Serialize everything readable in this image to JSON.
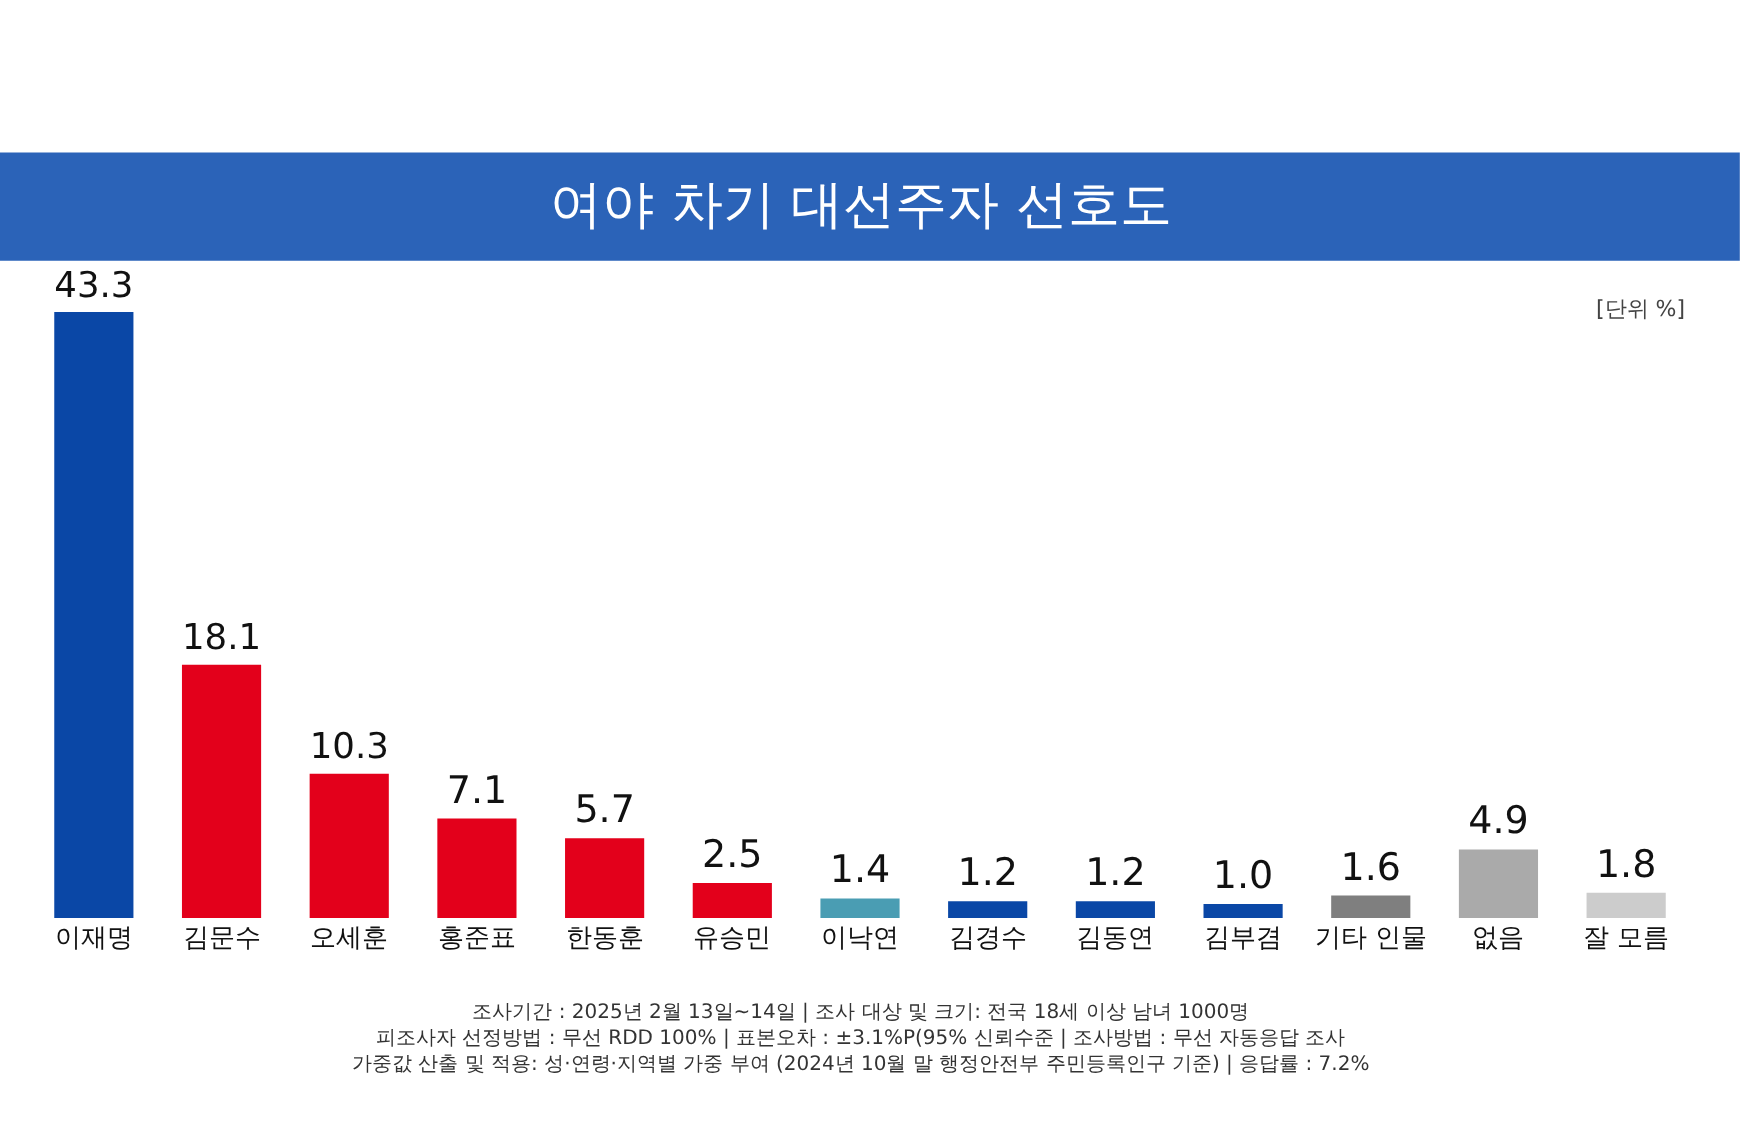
{
  "chart_data": {
    "type": "bar",
    "title": "여야 차기 대선주자 선호도",
    "subtitle": "[단위 %]",
    "categories": [
      "이재명",
      "김문수",
      "오세훈",
      "홍준표",
      "한동훈",
      "유승민",
      "이낙연",
      "김경수",
      "김동연",
      "김부겸",
      "기타 인물",
      "없음",
      "잘 모름"
    ],
    "values": [
      43.3,
      18.1,
      10.3,
      7.1,
      5.7,
      2.5,
      1.4,
      1.2,
      1.2,
      1.0,
      1.6,
      4.9,
      1.8
    ],
    "value_labels": [
      "43.3",
      "18.1",
      "10.3",
      "7.1",
      "5.7",
      "2.5",
      "1.4",
      "1.2",
      "1.2",
      "1.0",
      "1.6",
      "4.9",
      "1.8"
    ],
    "colors": [
      "#0a47a6",
      "#e3001b",
      "#e3001b",
      "#e3001b",
      "#e3001b",
      "#e3001b",
      "#4a9db3",
      "#0a47a6",
      "#0a47a6",
      "#0a47a6",
      "#7f7f7f",
      "#aaaaaa",
      "#cccccc"
    ],
    "legend": false,
    "annotations": [
      "조사기간 : 2025년 2월 13일~14일 | 조사 대상 및 크기: 전국 18세 이상 남녀 1000명",
      "피조사자 선정방법 : 무선 RDD 100% | 표본오차 : ±3.1%P(95% 신뢰수준 | 조사방법 : 무선 자동응답 조사",
      "가중값 산출 및 적용: 성·연령·지역별 가중 부여 (2024년 10월 말 행정안전부 주민등록인구 기준) | 응답률 : 7.2%"
    ]
  }
}
